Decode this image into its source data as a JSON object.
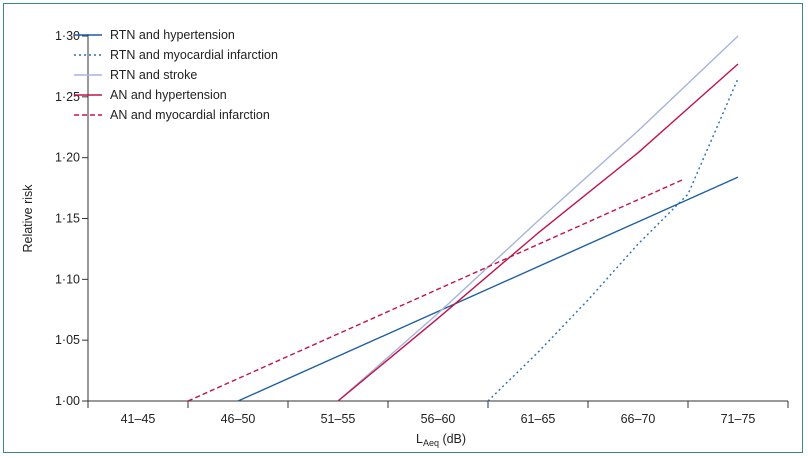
{
  "chart_data": {
    "type": "line",
    "categories": [
      "41–45",
      "46–50",
      "51–55",
      "56–60",
      "61–65",
      "66–70",
      "71–75"
    ],
    "xlabel": {
      "main": "L",
      "sub": "Aeq",
      "unit": " (dB)"
    },
    "ylabel": "Relative risk",
    "ylim": [
      1.0,
      1.3
    ],
    "yticks": [
      1.0,
      1.05,
      1.1,
      1.15,
      1.2,
      1.25,
      1.3
    ],
    "ytick_labels": [
      "1·00",
      "1·05",
      "1·10",
      "1·15",
      "1·20",
      "1·25",
      "1·30"
    ],
    "grid": false,
    "legend_position": "top-left",
    "series": [
      {
        "name": "RTN and hypertension",
        "color": "#1f5fa0",
        "dash": "solid",
        "points": [
          {
            "x": 1,
            "y": 1.0
          },
          {
            "x": 6,
            "y": 1.184
          }
        ]
      },
      {
        "name": "RTN and myocardial infarction",
        "color": "#2a6fb0",
        "dash": "dotted",
        "points": [
          {
            "x": 3.5,
            "y": 1.0
          },
          {
            "x": 4,
            "y": 1.04
          },
          {
            "x": 4.5,
            "y": 1.083
          },
          {
            "x": 5,
            "y": 1.129
          },
          {
            "x": 5.5,
            "y": 1.17
          },
          {
            "x": 6,
            "y": 1.265
          }
        ]
      },
      {
        "name": "RTN and stroke",
        "color": "#a7b3de",
        "dash": "solid",
        "points": [
          {
            "x": 2,
            "y": 1.0
          },
          {
            "x": 3,
            "y": 1.072
          },
          {
            "x": 4,
            "y": 1.148
          },
          {
            "x": 5,
            "y": 1.222
          },
          {
            "x": 6,
            "y": 1.3
          }
        ]
      },
      {
        "name": "AN and hypertension",
        "color": "#c0144a",
        "dash": "solid",
        "points": [
          {
            "x": 2,
            "y": 1.0
          },
          {
            "x": 3,
            "y": 1.068
          },
          {
            "x": 4,
            "y": 1.138
          },
          {
            "x": 5,
            "y": 1.204
          },
          {
            "x": 6,
            "y": 1.277
          }
        ]
      },
      {
        "name": "AN and myocardial infarction",
        "color": "#c0144a",
        "dash": "dashed",
        "points": [
          {
            "x": 0.5,
            "y": 1.0
          },
          {
            "x": 5.45,
            "y": 1.182
          }
        ]
      }
    ]
  }
}
